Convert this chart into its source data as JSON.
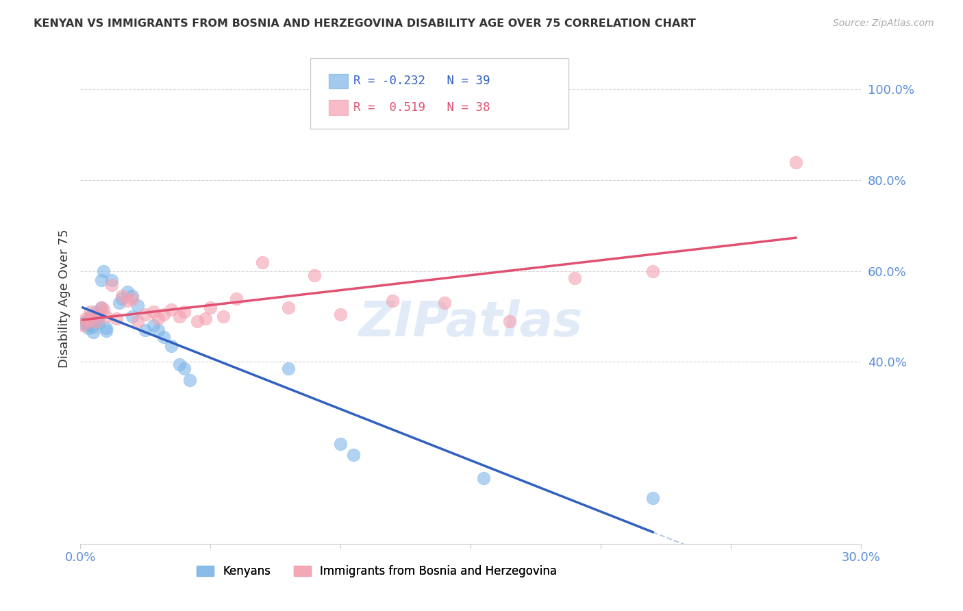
{
  "title": "KENYAN VS IMMIGRANTS FROM BOSNIA AND HERZEGOVINA DISABILITY AGE OVER 75 CORRELATION CHART",
  "source": "Source: ZipAtlas.com",
  "ylabel_label": "Disability Age Over 75",
  "xlim": [
    0.0,
    0.3
  ],
  "ylim": [
    0.0,
    1.08
  ],
  "watermark": "ZIPatlas",
  "kenyan_color": "#7EB6E8",
  "bosnian_color": "#F4A0B0",
  "kenyan_line_color": "#3060C0",
  "bosnian_line_color": "#E05070",
  "kenyan_R": "-0.232",
  "kenyan_N": "39",
  "bosnian_R": "0.519",
  "bosnian_N": "38",
  "legend_label_kenyan": "Kenyans",
  "legend_label_bosnian": "Immigrants from Bosnia and Herzegovina",
  "kenyan_x": [
    0.001,
    0.002,
    0.003,
    0.003,
    0.004,
    0.004,
    0.004,
    0.005,
    0.005,
    0.005,
    0.006,
    0.006,
    0.007,
    0.007,
    0.008,
    0.008,
    0.009,
    0.01,
    0.01,
    0.012,
    0.015,
    0.016,
    0.018,
    0.02,
    0.02,
    0.022,
    0.025,
    0.028,
    0.03,
    0.032,
    0.035,
    0.038,
    0.04,
    0.042,
    0.08,
    0.1,
    0.105,
    0.155,
    0.22
  ],
  "kenyan_y": [
    0.485,
    0.49,
    0.48,
    0.475,
    0.5,
    0.488,
    0.482,
    0.495,
    0.478,
    0.465,
    0.51,
    0.488,
    0.502,
    0.485,
    0.52,
    0.58,
    0.6,
    0.475,
    0.468,
    0.58,
    0.53,
    0.54,
    0.555,
    0.545,
    0.5,
    0.525,
    0.47,
    0.48,
    0.47,
    0.455,
    0.435,
    0.395,
    0.385,
    0.36,
    0.385,
    0.22,
    0.195,
    0.145,
    0.1
  ],
  "bosnian_x": [
    0.001,
    0.002,
    0.003,
    0.004,
    0.005,
    0.006,
    0.007,
    0.008,
    0.009,
    0.01,
    0.012,
    0.014,
    0.016,
    0.018,
    0.02,
    0.022,
    0.025,
    0.028,
    0.03,
    0.032,
    0.035,
    0.038,
    0.04,
    0.045,
    0.048,
    0.05,
    0.055,
    0.06,
    0.07,
    0.08,
    0.09,
    0.1,
    0.12,
    0.14,
    0.165,
    0.19,
    0.22,
    0.275
  ],
  "bosnian_y": [
    0.48,
    0.495,
    0.49,
    0.51,
    0.5,
    0.488,
    0.505,
    0.52,
    0.515,
    0.5,
    0.57,
    0.495,
    0.545,
    0.535,
    0.54,
    0.49,
    0.505,
    0.51,
    0.495,
    0.505,
    0.515,
    0.5,
    0.51,
    0.49,
    0.495,
    0.52,
    0.5,
    0.54,
    0.62,
    0.52,
    0.59,
    0.505,
    0.535,
    0.53,
    0.49,
    0.585,
    0.6,
    0.84
  ]
}
